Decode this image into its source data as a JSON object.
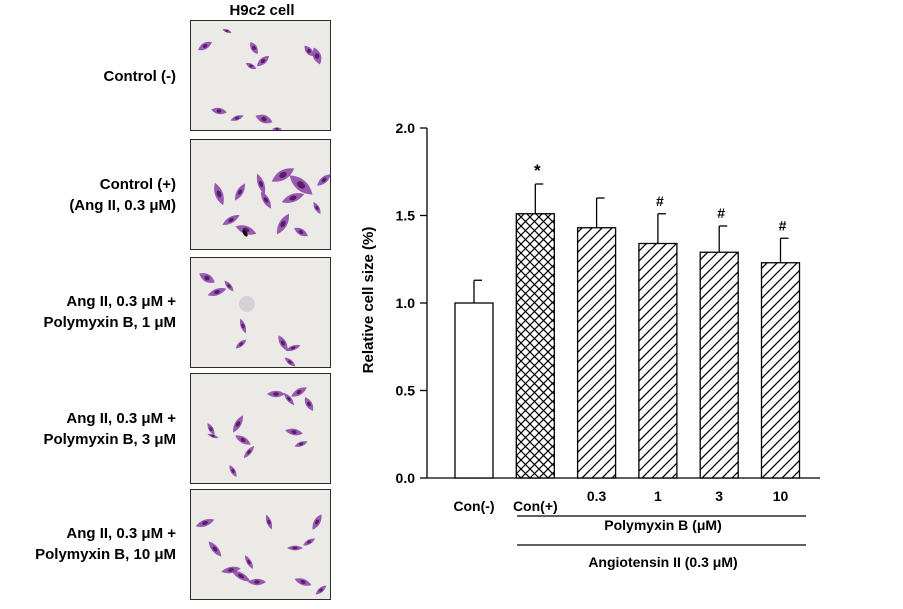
{
  "micrograph_title": "H9c2 cell",
  "rows": [
    {
      "label_lines": [
        "Control (-)"
      ]
    },
    {
      "label_lines": [
        "Control (+)",
        "(Ang II, 0.3 μM)"
      ]
    },
    {
      "label_lines": [
        "Ang II, 0.3 μM +",
        "Polymyxin B, 1 μM"
      ]
    },
    {
      "label_lines": [
        "Ang II, 0.3 μM +",
        "Polymyxin B, 3 μM"
      ]
    },
    {
      "label_lines": [
        "Ang II, 0.3 μM +",
        "Polymyxin B, 10 μM"
      ]
    }
  ],
  "chart_data": {
    "type": "bar",
    "categories": [
      "Con(-)",
      "Con(+)",
      "0.3",
      "1",
      "3",
      "10"
    ],
    "values": [
      1.0,
      1.51,
      1.43,
      1.34,
      1.29,
      1.23
    ],
    "errors": [
      0.13,
      0.17,
      0.17,
      0.17,
      0.15,
      0.14
    ],
    "significance": [
      "",
      "*",
      "",
      "#",
      "#",
      "#"
    ],
    "patterns": [
      "none",
      "crosshatch",
      "diagonal",
      "diagonal",
      "diagonal",
      "diagonal"
    ],
    "ylabel": "Relative cell size (%)",
    "ylim": [
      0,
      2.0
    ],
    "yticks": [
      "0.0",
      "0.5",
      "1.0",
      "1.5",
      "2.0"
    ],
    "group_labels": {
      "polymyxin": "Polymyxin B (μM)",
      "angiotensin": "Angiotensin II (0.3 μM)"
    },
    "grid": false,
    "legend": "none"
  },
  "colors": {
    "cell_stain": "#8b3fa6",
    "cell_stain_dark": "#4e1763",
    "micrograph_bg": "#eceae7"
  }
}
